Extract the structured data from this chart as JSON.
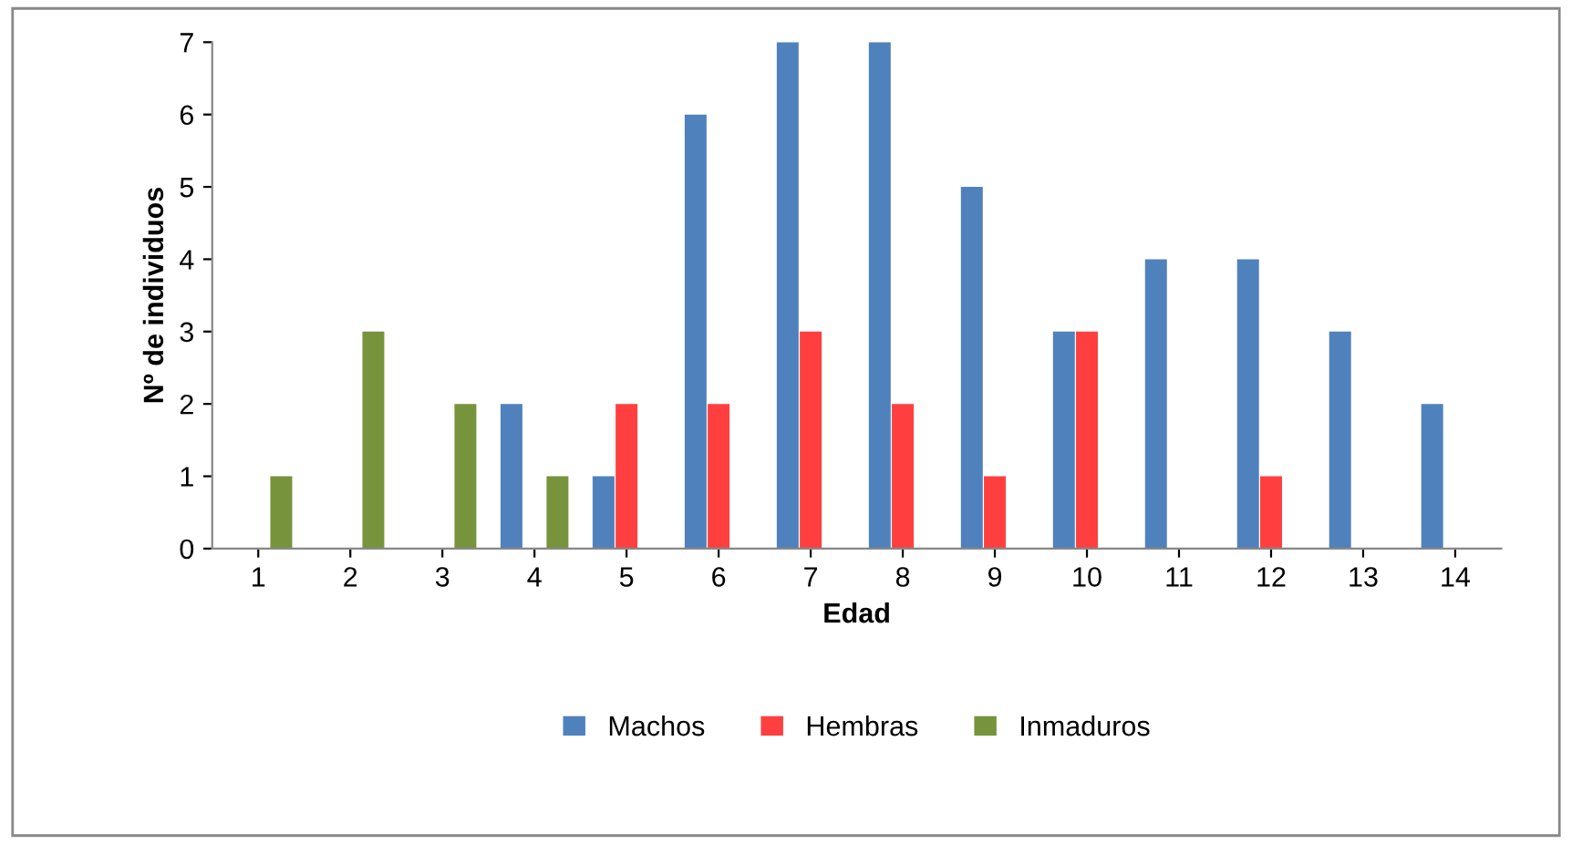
{
  "chart_data": {
    "type": "bar",
    "xlabel": "Edad",
    "ylabel": "Nº de individuos",
    "categories": [
      "1",
      "2",
      "3",
      "4",
      "5",
      "6",
      "7",
      "8",
      "9",
      "10",
      "11",
      "12",
      "13",
      "14"
    ],
    "series": [
      {
        "name": "Machos",
        "color": "#4f81bd",
        "values": [
          0,
          0,
          0,
          2,
          1,
          6,
          7,
          7,
          5,
          3,
          4,
          4,
          3,
          2
        ]
      },
      {
        "name": "Hembras",
        "color": "#ff3f3f",
        "values": [
          0,
          0,
          0,
          0,
          2,
          2,
          3,
          2,
          1,
          3,
          0,
          1,
          0,
          0
        ]
      },
      {
        "name": "Inmaduros",
        "color": "#77933c",
        "values": [
          1,
          3,
          2,
          1,
          0,
          0,
          0,
          0,
          0,
          0,
          0,
          0,
          0,
          0
        ]
      }
    ],
    "ylim": [
      0,
      7
    ],
    "yticks": [
      0,
      1,
      2,
      3,
      4,
      5,
      6,
      7
    ],
    "grid": false,
    "legend": "bottom"
  }
}
